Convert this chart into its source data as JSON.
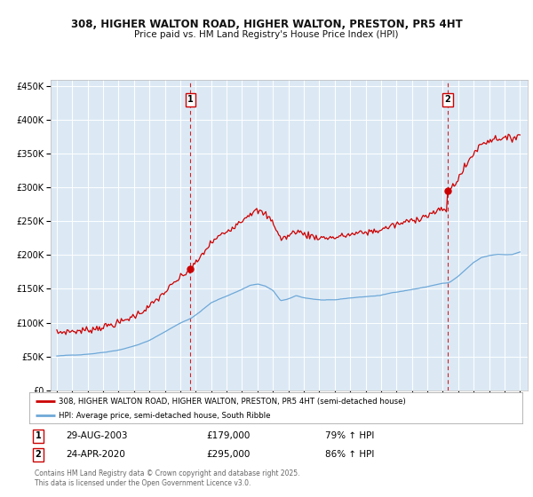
{
  "title_line1": "308, HIGHER WALTON ROAD, HIGHER WALTON, PRESTON, PR5 4HT",
  "title_line2": "Price paid vs. HM Land Registry's House Price Index (HPI)",
  "red_label": "308, HIGHER WALTON ROAD, HIGHER WALTON, PRESTON, PR5 4HT (semi-detached house)",
  "blue_label": "HPI: Average price, semi-detached house, South Ribble",
  "sale1_date": 2003.66,
  "sale1_price": 179000,
  "sale1_text": "29-AUG-2003",
  "sale1_hpi": "79% ↑ HPI",
  "sale2_date": 2020.31,
  "sale2_price": 295000,
  "sale2_text": "24-APR-2020",
  "sale2_hpi": "86% ↑ HPI",
  "ylim": [
    0,
    460000
  ],
  "xlim_start": 1994.6,
  "xlim_end": 2025.5,
  "plot_bg": "#dce9f5",
  "red_color": "#cc0000",
  "blue_color": "#6ea8d8",
  "grid_color": "#ffffff",
  "footnote": "Contains HM Land Registry data © Crown copyright and database right 2025.\nThis data is licensed under the Open Government Licence v3.0."
}
